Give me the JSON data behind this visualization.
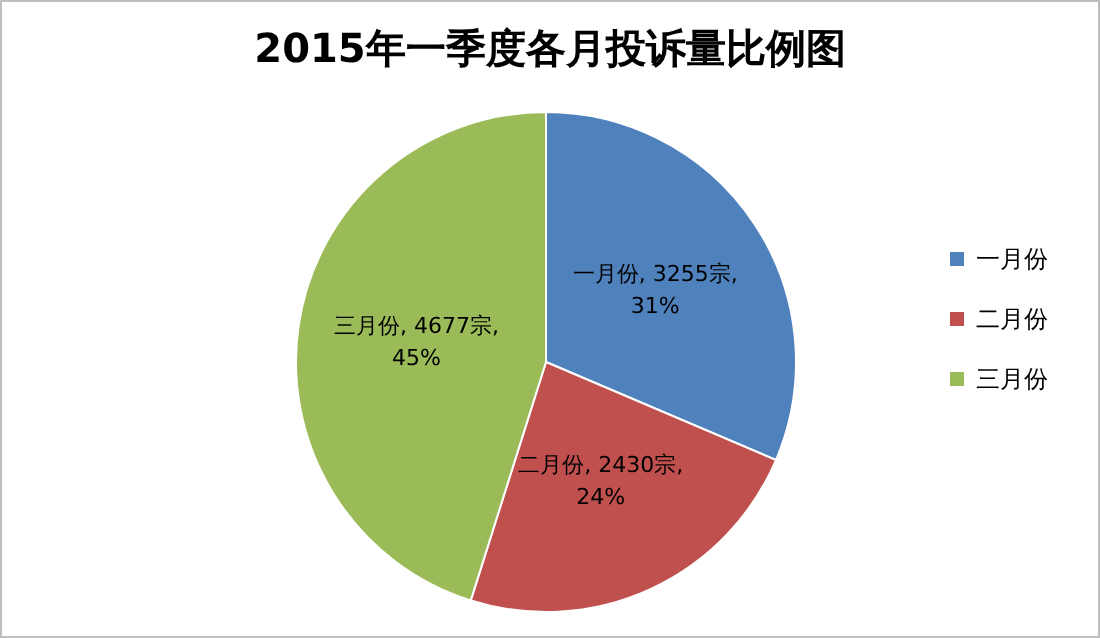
{
  "chart_data": {
    "type": "pie",
    "title": "2015年一季度各月投诉量比例图",
    "categories": [
      "一月份",
      "二月份",
      "三月份"
    ],
    "values": [
      3255,
      2430,
      4677
    ],
    "colors": [
      "#4f81bd",
      "#c0504d",
      "#9bbb59"
    ],
    "value_labels": [
      "一月份, 3255宗, 31%",
      "二月份, 2430宗, 24%",
      "三月份, 4677宗, 45%"
    ],
    "legend": "right"
  }
}
